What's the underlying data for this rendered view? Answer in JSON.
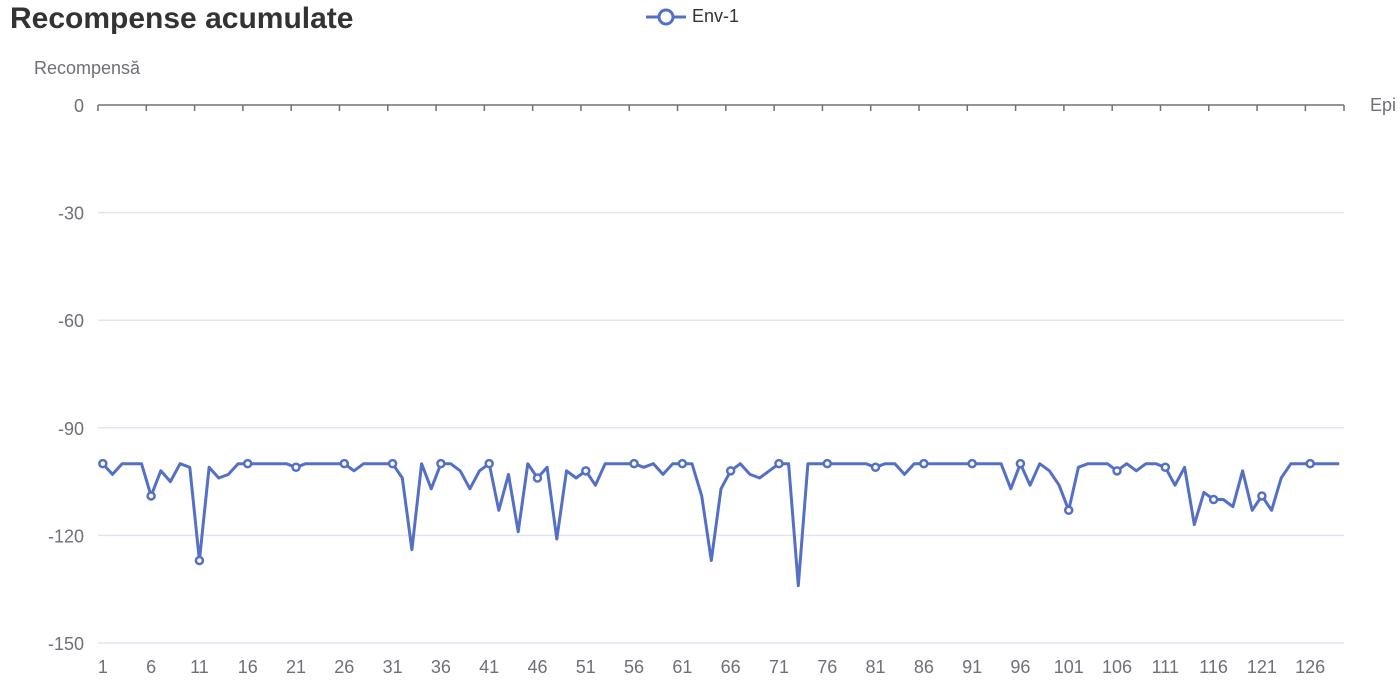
{
  "chart_data": {
    "type": "line",
    "title": "Recompense acumulate",
    "ylabel": "Recompensă",
    "xlabel": "Epi",
    "ylim": [
      -150,
      0
    ],
    "y_ticks": [
      0,
      -30,
      -60,
      -90,
      -120,
      -150
    ],
    "x_ticks": [
      1,
      6,
      11,
      16,
      21,
      26,
      31,
      36,
      41,
      46,
      51,
      56,
      61,
      66,
      71,
      76,
      81,
      86,
      91,
      96,
      101,
      106,
      111,
      116,
      121,
      126
    ],
    "x_count": 129,
    "grid": true,
    "legend_position": "top",
    "marker_every": 5,
    "series": [
      {
        "name": "Env-1",
        "color": "#5470c6",
        "values": [
          -100,
          -103,
          -100,
          -100,
          -100,
          -109,
          -102,
          -105,
          -100,
          -101,
          -127,
          -101,
          -104,
          -103,
          -100,
          -100,
          -100,
          -100,
          -100,
          -100,
          -101,
          -100,
          -100,
          -100,
          -100,
          -100,
          -102,
          -100,
          -100,
          -100,
          -100,
          -104,
          -124,
          -100,
          -107,
          -100,
          -100,
          -102,
          -107,
          -102,
          -100,
          -113,
          -103,
          -119,
          -100,
          -104,
          -101,
          -121,
          -102,
          -104,
          -102,
          -106,
          -100,
          -100,
          -100,
          -100,
          -101,
          -100,
          -103,
          -100,
          -100,
          -100,
          -109,
          -127,
          -107,
          -102,
          -100,
          -103,
          -104,
          -102,
          -100,
          -100,
          -134,
          -100,
          -100,
          -100,
          -100,
          -100,
          -100,
          -100,
          -101,
          -100,
          -100,
          -103,
          -100,
          -100,
          -100,
          -100,
          -100,
          -100,
          -100,
          -100,
          -100,
          -100,
          -107,
          -100,
          -106,
          -100,
          -102,
          -106,
          -113,
          -101,
          -100,
          -100,
          -100,
          -102,
          -100,
          -102,
          -100,
          -100,
          -101,
          -106,
          -101,
          -117,
          -108,
          -110,
          -110,
          -112,
          -102,
          -113,
          -109,
          -113,
          -104,
          -100,
          -100,
          -100,
          -100,
          -100,
          -100
        ]
      }
    ]
  }
}
